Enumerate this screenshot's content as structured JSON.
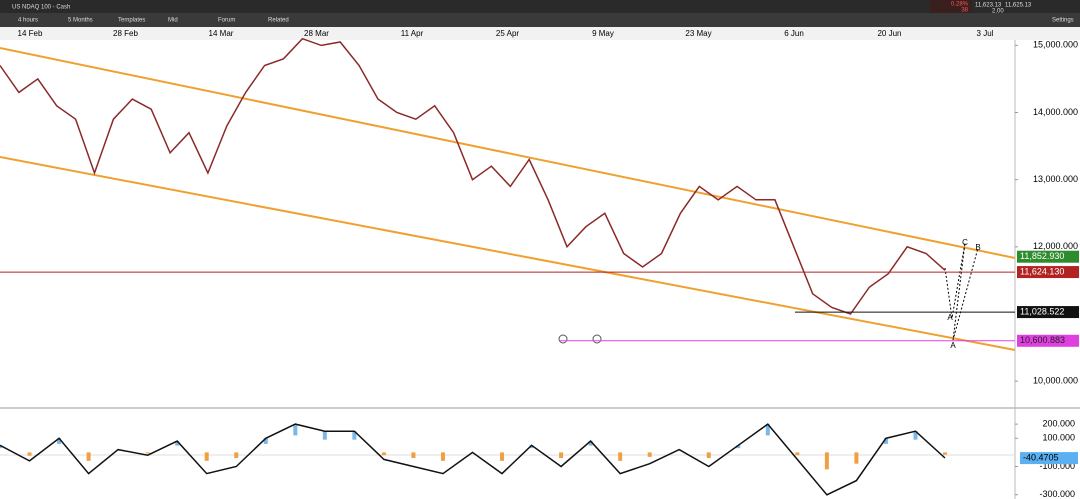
{
  "header": {
    "instrument": "US NDAQ 100 - Cash",
    "change": "0.28%",
    "change_points": "38",
    "bid": "11,623.13",
    "ask": "11,625.13",
    "spread": "2.00",
    "settings": "Settings"
  },
  "toolbar": [
    "4 hours",
    "5 Months",
    "Templates",
    "Mid",
    "Forum",
    "Related"
  ],
  "chart_data": {
    "type": "line",
    "x_labels": [
      "14 Feb",
      "28 Feb",
      "14 Mar",
      "28 Mar",
      "11 Apr",
      "25 Apr",
      "9 May",
      "23 May",
      "6 Jun",
      "20 Jun",
      "3 Jul"
    ],
    "ylim": [
      15080,
      9600
    ],
    "yticks": [
      {
        "value": 15000,
        "label": "15,000.000"
      },
      {
        "value": 14000,
        "label": "14,000.000"
      },
      {
        "value": 13000,
        "label": "13,000.000"
      },
      {
        "value": 12000,
        "label": "12,000.000"
      },
      {
        "value": 10000,
        "label": "10,000.000"
      }
    ],
    "series": [
      {
        "color": "#8b2a2a",
        "values": [
          14700,
          14300,
          14500,
          14100,
          13900,
          13100,
          13900,
          14200,
          14050,
          13400,
          13700,
          13100,
          13800,
          14300,
          14700,
          14800,
          15100,
          15000,
          15050,
          14700,
          14200,
          14000,
          13900,
          14100,
          13700,
          13000,
          13200,
          12900,
          13300,
          12700,
          12000,
          12300,
          12500,
          11900,
          11700,
          11900,
          12500,
          12900,
          12700,
          12900,
          12700,
          12700,
          12000,
          11300,
          11100,
          11000,
          11400,
          11600,
          12000,
          11900,
          11650
        ]
      }
    ],
    "price_labels": [
      {
        "value": 11852.93,
        "label": "11,852.930",
        "color": "#2e8b2e"
      },
      {
        "value": 11624.13,
        "label": "11,624.130",
        "color": "#b22222"
      },
      {
        "value": 11028.522,
        "label": "11,028.522",
        "color": "#111111"
      },
      {
        "value": 10600.883,
        "label": "10,600.883",
        "color": "#e040e0"
      }
    ],
    "annotations": [
      "C",
      "B",
      "A",
      "A"
    ]
  },
  "oscillator": {
    "ylim": [
      300,
      -330
    ],
    "yticks": [
      {
        "value": 200,
        "label": "200.000"
      },
      {
        "value": 100,
        "label": "100.000"
      },
      {
        "value": -100,
        "label": "-100.000"
      },
      {
        "value": -300,
        "label": "-300.000"
      }
    ],
    "current": {
      "value": -40.4705,
      "label": "-40.4705"
    },
    "values": [
      50,
      -60,
      100,
      -150,
      20,
      -20,
      80,
      -150,
      -100,
      100,
      200,
      150,
      150,
      -50,
      -100,
      -150,
      0,
      -150,
      50,
      -100,
      80,
      -150,
      -80,
      20,
      -100,
      50,
      200,
      -50,
      -300,
      -200,
      100,
      150,
      -40
    ]
  }
}
